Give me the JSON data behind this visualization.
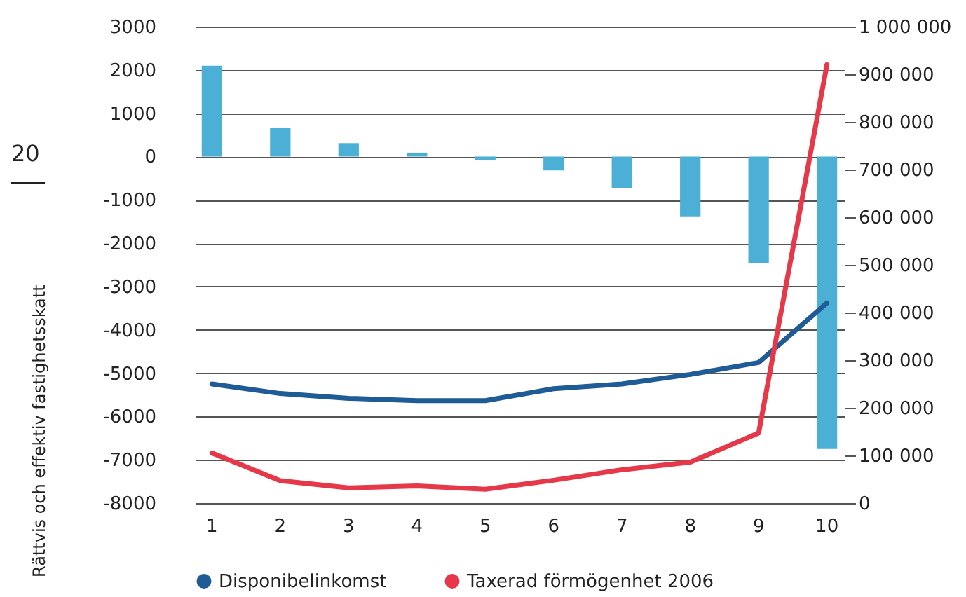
{
  "chart_data": {
    "type": "bar",
    "categories": [
      "1",
      "2",
      "3",
      "4",
      "5",
      "6",
      "7",
      "8",
      "9",
      "10"
    ],
    "series": [
      {
        "color": "#4bafd6",
        "values": [
          2100,
          670,
          310,
          90,
          -90,
          -320,
          -720,
          -1380,
          -2460,
          -6750
        ]
      },
      {
        "type": "line",
        "axis": "y2",
        "name": "Disponibelinkomst",
        "color": "#1f5b94",
        "values": [
          250000,
          230000,
          220000,
          215000,
          215000,
          240000,
          250000,
          270000,
          295000,
          420000
        ]
      },
      {
        "type": "line",
        "axis": "y2",
        "name": "Taxerad förmögenhet 2006",
        "color": "#e5394a",
        "values": [
          105000,
          47000,
          32000,
          36000,
          29000,
          48000,
          70000,
          86000,
          147000,
          920000
        ]
      }
    ],
    "ylim": [
      -8000,
      3000
    ],
    "yticks": [
      -8000,
      -7000,
      -6000,
      -5000,
      -4000,
      -3000,
      -2000,
      -1000,
      0,
      1000,
      2000,
      3000
    ],
    "y2lim": [
      0,
      1000000
    ],
    "y2ticks": [
      0,
      {
        "value": 100000,
        "label": "100 000"
      },
      {
        "value": 200000,
        "label": "200 000"
      },
      {
        "value": 300000,
        "label": "300 000"
      },
      {
        "value": 400000,
        "label": "400 000"
      },
      {
        "value": 500000,
        "label": "500 000"
      },
      {
        "value": 600000,
        "label": "600 000"
      },
      {
        "value": 700000,
        "label": "700 000"
      },
      {
        "value": 800000,
        "label": "800 000"
      },
      {
        "value": 900000,
        "label": "900 000"
      },
      {
        "value": 1000000,
        "label": "1 000 000"
      }
    ],
    "grid": "y",
    "legend": "bottom",
    "line_style": "solid",
    "annotations": [
      "20",
      "Rättvis och effektiv fastighetsskatt"
    ]
  }
}
